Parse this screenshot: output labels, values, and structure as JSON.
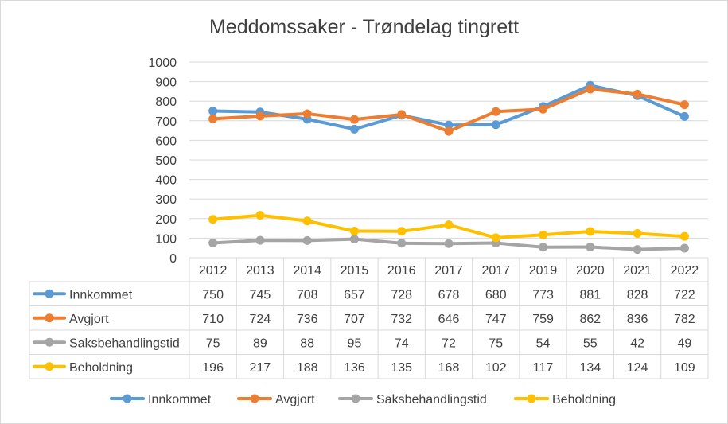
{
  "chart_data": {
    "type": "line",
    "title": "Meddomssaker  - Trøndelag tingrett",
    "categories": [
      "2012",
      "2013",
      "2014",
      "2015",
      "2016",
      "2017",
      "2017",
      "2019",
      "2020",
      "2021",
      "2022"
    ],
    "y_ticks": [
      "0",
      "100",
      "200",
      "300",
      "400",
      "500",
      "600",
      "700",
      "800",
      "900",
      "1000"
    ],
    "ylim": [
      0,
      1000
    ],
    "grid": true,
    "legend_position": "bottom",
    "data_table": true,
    "series": [
      {
        "name": "Innkommet",
        "color": "#5B9BD5",
        "values": [
          750,
          745,
          708,
          657,
          728,
          678,
          680,
          773,
          881,
          828,
          722
        ]
      },
      {
        "name": "Avgjort",
        "color": "#ED7D31",
        "values": [
          710,
          724,
          736,
          707,
          732,
          646,
          747,
          759,
          862,
          836,
          782
        ]
      },
      {
        "name": "Saksbehandlingstid",
        "color": "#A5A5A5",
        "values": [
          75,
          89,
          88,
          95,
          74,
          72,
          75,
          54,
          55,
          42,
          49
        ]
      },
      {
        "name": "Beholdning",
        "color": "#FFC000",
        "values": [
          196,
          217,
          188,
          136,
          135,
          168,
          102,
          117,
          134,
          124,
          109
        ]
      }
    ]
  }
}
